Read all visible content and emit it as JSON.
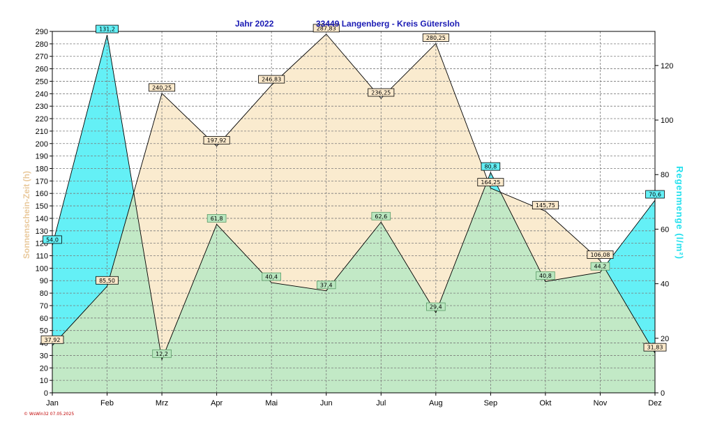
{
  "chart_data": {
    "type": "area",
    "title_year": "Jahr  2022",
    "title_place": "33449 Langenberg - Kreis Gütersloh",
    "categories": [
      "Jan",
      "Feb",
      "Mrz",
      "Apr",
      "Mai",
      "Jun",
      "Jul",
      "Aug",
      "Sep",
      "Okt",
      "Nov",
      "Dez"
    ],
    "y_left": {
      "label": "Sonnenschein-Zeit  (h)",
      "range": [
        0,
        290
      ],
      "step": 10
    },
    "y_right": {
      "label": "Regenmenge  (l/m²)",
      "range": [
        0,
        132.5
      ],
      "ticks": [
        0,
        20,
        40,
        60,
        80,
        100,
        120
      ]
    },
    "series": [
      {
        "name": "Sonnenschein-Zeit (h)",
        "axis": "left",
        "color": "#faebcf",
        "values": [
          37.92,
          85.5,
          240.25,
          197.92,
          246.83,
          287.83,
          236.25,
          280.25,
          164.25,
          145.75,
          106.08,
          31.83
        ],
        "labels": [
          "37,92",
          "85,50",
          "240,25",
          "197,92",
          "246,83",
          "287,83",
          "236,25",
          "280,25",
          "164,25",
          "145,75",
          "106,08",
          "31,83"
        ]
      },
      {
        "name": "Regenmenge (l/m²)",
        "axis": "right",
        "color": "#64f0f6",
        "values": [
          54.0,
          131.2,
          12.2,
          61.8,
          40.4,
          37.4,
          62.6,
          29.4,
          80.8,
          40.8,
          44.2,
          70.6
        ],
        "labels": [
          "54,0",
          "131,2",
          "12,2",
          "61,8",
          "40,4",
          "37,4",
          "62,6",
          "29,4",
          "80,8",
          "40,8",
          "44,2",
          "70,6"
        ]
      }
    ],
    "overlap_color": "#c2e9c6",
    "grid": true
  },
  "footer": "© WsWin32  07.05.2025"
}
